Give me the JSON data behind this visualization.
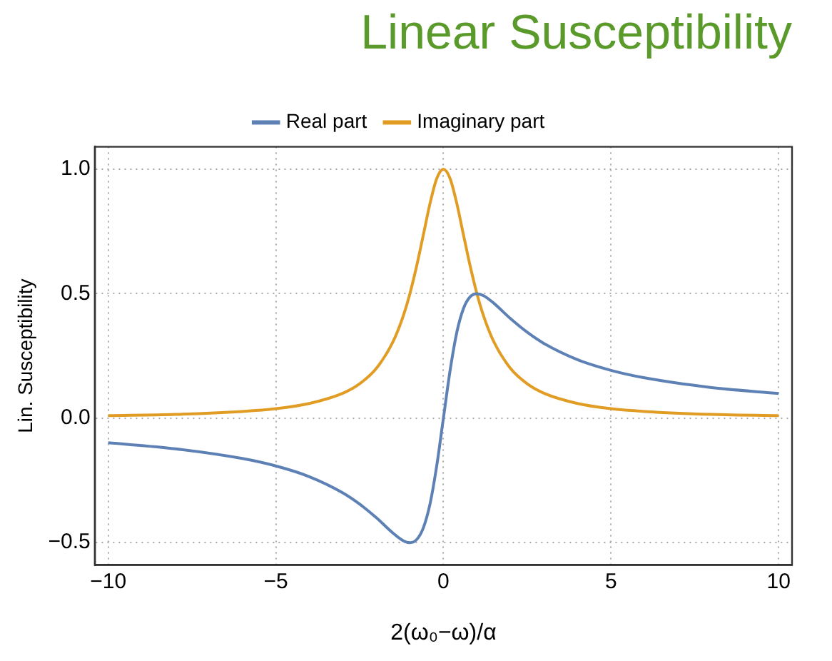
{
  "chart_data": {
    "type": "line",
    "title": "Linear Susceptibility",
    "xlabel": "2(ω₀−ω)/α",
    "ylabel": "Lin. Susceptibility",
    "x": [
      -10,
      -8,
      -6,
      -5,
      -4,
      -3,
      -2.5,
      -2,
      -1.5,
      -1.2,
      -1,
      -0.8,
      -0.6,
      -0.4,
      -0.2,
      0,
      0.2,
      0.4,
      0.6,
      0.8,
      1,
      1.2,
      1.5,
      2,
      2.5,
      3,
      4,
      5,
      6,
      8,
      10
    ],
    "series": [
      {
        "name": "Real part",
        "color": "#5e81b5",
        "values": [
          -0.099,
          -0.123,
          -0.162,
          -0.192,
          -0.235,
          -0.3,
          -0.345,
          -0.4,
          -0.462,
          -0.492,
          -0.5,
          -0.488,
          -0.441,
          -0.345,
          -0.192,
          0,
          0.192,
          0.345,
          0.441,
          0.488,
          0.5,
          0.492,
          0.462,
          0.4,
          0.345,
          0.3,
          0.235,
          0.192,
          0.162,
          0.123,
          0.099
        ]
      },
      {
        "name": "Imaginary part",
        "color": "#e19c24",
        "values": [
          0.01,
          0.015,
          0.027,
          0.038,
          0.059,
          0.1,
          0.138,
          0.2,
          0.308,
          0.41,
          0.5,
          0.61,
          0.735,
          0.862,
          0.962,
          1,
          0.962,
          0.862,
          0.735,
          0.61,
          0.5,
          0.41,
          0.308,
          0.2,
          0.138,
          0.1,
          0.059,
          0.038,
          0.027,
          0.015,
          0.01
        ]
      }
    ],
    "xlim": [
      -10.4,
      10.4
    ],
    "xticks": [
      {
        "value": -10,
        "label": "−10"
      },
      {
        "value": -5,
        "label": "−5"
      },
      0,
      5,
      10
    ],
    "ylim": [
      -0.59,
      1.09
    ],
    "yticks": [
      {
        "value": -0.5,
        "label": "−0.5"
      },
      {
        "value": 0,
        "label": "0.0"
      },
      0.5,
      {
        "value": 1,
        "label": "1.0"
      }
    ],
    "grid": true,
    "legend": "top",
    "marker": "none",
    "line_style": "solid"
  }
}
